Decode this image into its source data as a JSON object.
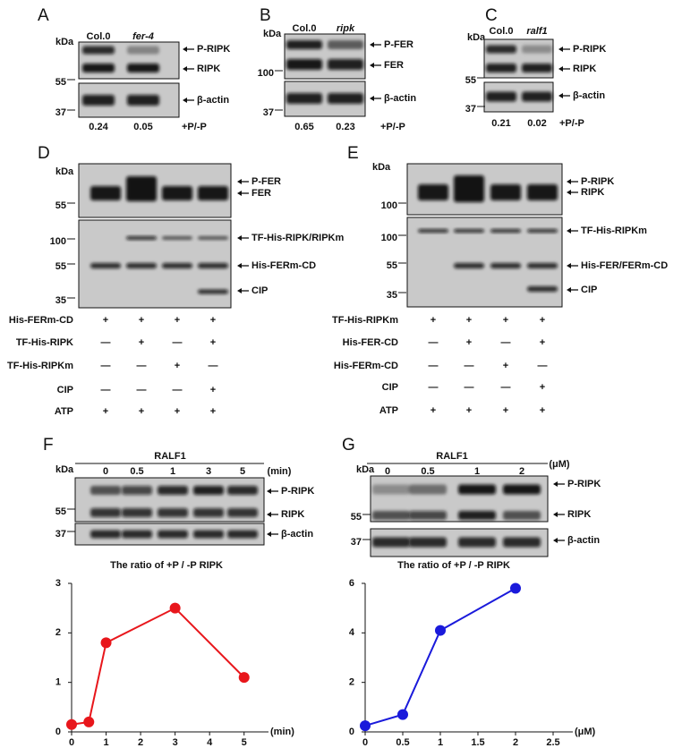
{
  "blots": [
    {
      "label": "A",
      "unit": "kDa",
      "lanes": [
        "Col.0",
        "fer-4"
      ],
      "targets": [
        "P-RIPK",
        "RIPK",
        "β-actin"
      ],
      "markers": [
        55,
        37
      ],
      "ratios": [
        0.24,
        0.05
      ],
      "ratio_label": "+P/-P"
    },
    {
      "label": "B",
      "unit": "kDa",
      "lanes": [
        "Col.0",
        "ripk"
      ],
      "targets": [
        "P-FER",
        "FER",
        "β-actin"
      ],
      "markers": [
        100,
        37
      ],
      "ratios": [
        0.65,
        0.23
      ],
      "ratio_label": "+P/-P"
    },
    {
      "label": "C",
      "unit": "kDa",
      "lanes": [
        "Col.0",
        "ralf1"
      ],
      "targets": [
        "P-RIPK",
        "RIPK",
        "β-actin"
      ],
      "markers": [
        55,
        37
      ],
      "ratios": [
        0.21,
        0.02
      ],
      "ratio_label": "+P/-P"
    },
    {
      "label": "D",
      "unit": "kDa",
      "targets": [
        "P-FER",
        "FER",
        "TF-His-RIPK/RIPKm",
        "His-FERm-CD",
        "CIP"
      ],
      "markers": [
        55,
        100,
        55,
        35
      ],
      "rows": [
        {
          "name": "His-FERm-CD",
          "signs": [
            "+",
            "+",
            "+",
            "+"
          ]
        },
        {
          "name": "TF-His-RIPK",
          "signs": [
            "—",
            "+",
            "—",
            "+"
          ]
        },
        {
          "name": "TF-His-RIPKm",
          "signs": [
            "—",
            "—",
            "+",
            "—"
          ]
        },
        {
          "name": "CIP",
          "signs": [
            "—",
            "—",
            "—",
            "+"
          ]
        },
        {
          "name": "ATP",
          "signs": [
            "+",
            "+",
            "+",
            "+"
          ]
        }
      ]
    },
    {
      "label": "E",
      "unit": "kDa",
      "targets": [
        "P-RIPK",
        "RIPK",
        "TF-His-RIPKm",
        "His-FER/FERm-CD",
        "CIP"
      ],
      "markers": [
        100,
        100,
        55,
        35
      ],
      "rows": [
        {
          "name": "TF-His-RIPKm",
          "signs": [
            "+",
            "+",
            "+",
            "+"
          ]
        },
        {
          "name": "His-FER-CD",
          "signs": [
            "—",
            "+",
            "—",
            "+"
          ]
        },
        {
          "name": "His-FERm-CD",
          "signs": [
            "—",
            "—",
            "+",
            "—"
          ]
        },
        {
          "name": "CIP",
          "signs": [
            "—",
            "—",
            "—",
            "+"
          ]
        },
        {
          "name": "ATP",
          "signs": [
            "+",
            "+",
            "+",
            "+"
          ]
        }
      ]
    },
    {
      "label": "F",
      "unit": "kDa",
      "treatment": "RALF1",
      "doses": [
        0,
        0.5,
        1,
        3,
        5
      ],
      "dose_unit": "(min)",
      "targets": [
        "P-RIPK",
        "RIPK",
        "β-actin"
      ],
      "markers": [
        55,
        37
      ]
    },
    {
      "label": "G",
      "unit": "kDa",
      "treatment": "RALF1",
      "doses": [
        0,
        0.5,
        1,
        2
      ],
      "dose_unit": "(μM)",
      "targets": [
        "P-RIPK",
        "RIPK",
        "β-actin"
      ],
      "markers": [
        55,
        37
      ]
    }
  ],
  "chart_data": [
    {
      "type": "line",
      "title": "The ratio of +P / -P RIPK",
      "x": [
        0,
        0.5,
        1,
        3,
        5
      ],
      "values": [
        0.15,
        0.2,
        1.8,
        2.5,
        1.1
      ],
      "color": "#e8161b",
      "xlim": [
        0,
        5.5
      ],
      "xticks": [
        0,
        1,
        2,
        3,
        4,
        5
      ],
      "ylim": [
        0,
        3
      ],
      "yticks": [
        0,
        1,
        2,
        3
      ],
      "x_label": "(min)"
    },
    {
      "type": "line",
      "title": "The ratio of +P / -P RIPK",
      "x": [
        0,
        0.5,
        1,
        2
      ],
      "values": [
        0.25,
        0.7,
        4.1,
        5.8
      ],
      "color": "#1a1adb",
      "xlim": [
        0,
        2.5
      ],
      "xticks": [
        0,
        0.5,
        1,
        1.5,
        2,
        2.5
      ],
      "ylim": [
        0,
        6
      ],
      "yticks": [
        0,
        2,
        4,
        6
      ],
      "x_label": "(μM)"
    }
  ]
}
